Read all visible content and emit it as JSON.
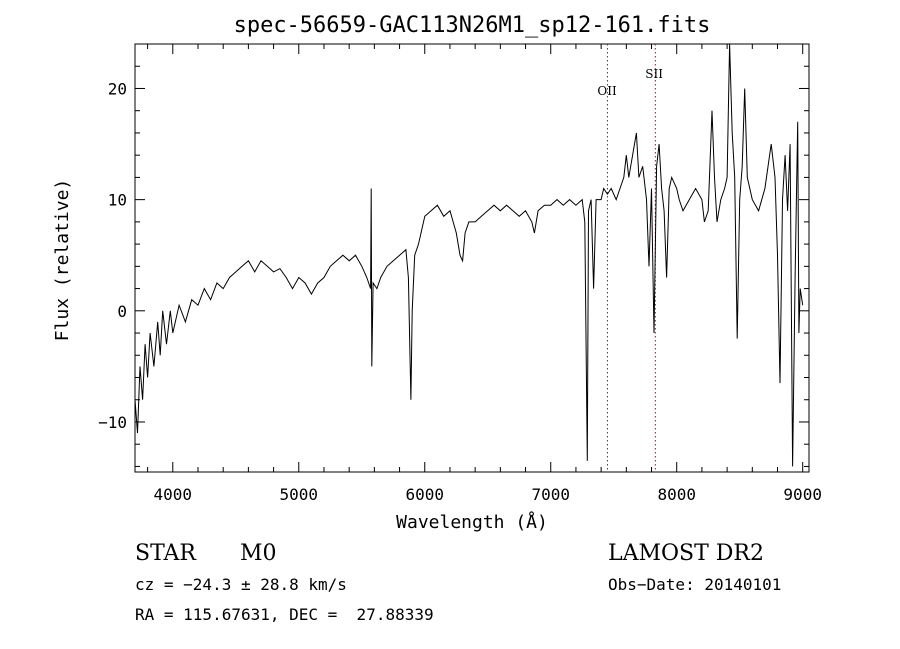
{
  "chart_data": {
    "type": "line",
    "title": "spec-56659-GAC113N26M1_sp12-161.fits",
    "xlabel": "Wavelength (Å)",
    "ylabel": "Flux (relative)",
    "xlim": [
      3700,
      9050
    ],
    "ylim": [
      -14.5,
      24
    ],
    "xticks": [
      4000,
      5000,
      6000,
      7000,
      8000,
      9000
    ],
    "yticks": [
      -10,
      0,
      10,
      20
    ],
    "x_tick_labels": [
      "4000",
      "5000",
      "6000",
      "7000",
      "8000",
      "9000"
    ],
    "y_tick_labels": [
      "−10",
      "0",
      "10",
      "20"
    ],
    "grid": false,
    "lines": [
      {
        "label": "OII",
        "x": 7450,
        "color": "#cc0000"
      },
      {
        "label": "SII",
        "x": 7830,
        "color": "#cc0000"
      }
    ],
    "series": [
      {
        "values": [
          [
            3700,
            -8
          ],
          [
            3720,
            -11
          ],
          [
            3740,
            -5
          ],
          [
            3760,
            -8
          ],
          [
            3780,
            -3
          ],
          [
            3800,
            -6
          ],
          [
            3820,
            -2
          ],
          [
            3850,
            -5
          ],
          [
            3880,
            -1
          ],
          [
            3900,
            -4
          ],
          [
            3920,
            0
          ],
          [
            3950,
            -3
          ],
          [
            3980,
            0
          ],
          [
            4000,
            -2
          ],
          [
            4050,
            0.5
          ],
          [
            4100,
            -1
          ],
          [
            4150,
            1
          ],
          [
            4200,
            0.5
          ],
          [
            4250,
            2
          ],
          [
            4300,
            1
          ],
          [
            4350,
            2.5
          ],
          [
            4400,
            2
          ],
          [
            4450,
            3
          ],
          [
            4500,
            3.5
          ],
          [
            4550,
            4
          ],
          [
            4600,
            4.5
          ],
          [
            4650,
            3.5
          ],
          [
            4700,
            4.5
          ],
          [
            4750,
            4
          ],
          [
            4800,
            3.5
          ],
          [
            4850,
            3.8
          ],
          [
            4900,
            3
          ],
          [
            4950,
            2
          ],
          [
            5000,
            3
          ],
          [
            5050,
            2.5
          ],
          [
            5100,
            1.5
          ],
          [
            5150,
            2.5
          ],
          [
            5200,
            3
          ],
          [
            5250,
            4
          ],
          [
            5300,
            4.5
          ],
          [
            5350,
            5
          ],
          [
            5400,
            4.5
          ],
          [
            5450,
            5
          ],
          [
            5500,
            4
          ],
          [
            5540,
            3
          ],
          [
            5570,
            2
          ],
          [
            5575,
            11
          ],
          [
            5580,
            -5
          ],
          [
            5590,
            2.5
          ],
          [
            5620,
            2
          ],
          [
            5650,
            3
          ],
          [
            5700,
            4
          ],
          [
            5750,
            4.5
          ],
          [
            5800,
            5
          ],
          [
            5850,
            5.5
          ],
          [
            5870,
            3
          ],
          [
            5890,
            -8
          ],
          [
            5900,
            0
          ],
          [
            5920,
            5
          ],
          [
            5950,
            6
          ],
          [
            6000,
            8.5
          ],
          [
            6050,
            9
          ],
          [
            6100,
            9.5
          ],
          [
            6150,
            8.5
          ],
          [
            6200,
            9
          ],
          [
            6250,
            7
          ],
          [
            6280,
            5
          ],
          [
            6300,
            4.5
          ],
          [
            6320,
            7
          ],
          [
            6350,
            8
          ],
          [
            6400,
            8
          ],
          [
            6450,
            8.5
          ],
          [
            6500,
            9
          ],
          [
            6550,
            9.5
          ],
          [
            6600,
            9
          ],
          [
            6650,
            9.5
          ],
          [
            6700,
            9
          ],
          [
            6750,
            8.5
          ],
          [
            6800,
            9
          ],
          [
            6850,
            8
          ],
          [
            6870,
            7
          ],
          [
            6900,
            9
          ],
          [
            6950,
            9.5
          ],
          [
            7000,
            9.5
          ],
          [
            7050,
            10
          ],
          [
            7100,
            9.5
          ],
          [
            7150,
            10
          ],
          [
            7200,
            9.5
          ],
          [
            7250,
            10
          ],
          [
            7270,
            8
          ],
          [
            7290,
            -13.5
          ],
          [
            7300,
            9
          ],
          [
            7320,
            10
          ],
          [
            7340,
            2
          ],
          [
            7360,
            10
          ],
          [
            7400,
            10
          ],
          [
            7420,
            11
          ],
          [
            7450,
            10.5
          ],
          [
            7480,
            11
          ],
          [
            7520,
            10
          ],
          [
            7550,
            11
          ],
          [
            7580,
            12
          ],
          [
            7600,
            14
          ],
          [
            7620,
            12
          ],
          [
            7650,
            14
          ],
          [
            7680,
            16
          ],
          [
            7700,
            12
          ],
          [
            7730,
            13
          ],
          [
            7760,
            10
          ],
          [
            7780,
            4
          ],
          [
            7800,
            11
          ],
          [
            7820,
            -2
          ],
          [
            7840,
            13
          ],
          [
            7860,
            15
          ],
          [
            7880,
            11
          ],
          [
            7900,
            9
          ],
          [
            7920,
            3
          ],
          [
            7940,
            11
          ],
          [
            7960,
            12
          ],
          [
            8000,
            11
          ],
          [
            8020,
            10
          ],
          [
            8050,
            9
          ],
          [
            8100,
            10
          ],
          [
            8150,
            11
          ],
          [
            8200,
            10
          ],
          [
            8220,
            8
          ],
          [
            8250,
            9
          ],
          [
            8280,
            18
          ],
          [
            8300,
            12
          ],
          [
            8320,
            8
          ],
          [
            8350,
            10
          ],
          [
            8380,
            11
          ],
          [
            8400,
            12
          ],
          [
            8420,
            24
          ],
          [
            8440,
            16
          ],
          [
            8460,
            12
          ],
          [
            8480,
            -2.5
          ],
          [
            8500,
            10
          ],
          [
            8520,
            13
          ],
          [
            8540,
            20
          ],
          [
            8560,
            12
          ],
          [
            8600,
            10
          ],
          [
            8650,
            9
          ],
          [
            8700,
            11
          ],
          [
            8750,
            15
          ],
          [
            8780,
            12
          ],
          [
            8800,
            5
          ],
          [
            8820,
            -6.5
          ],
          [
            8840,
            10
          ],
          [
            8860,
            14
          ],
          [
            8880,
            9
          ],
          [
            8900,
            15
          ],
          [
            8920,
            -14
          ],
          [
            8940,
            3
          ],
          [
            8960,
            17
          ],
          [
            8970,
            -2
          ],
          [
            8980,
            2
          ],
          [
            9000,
            0.5
          ]
        ]
      }
    ]
  },
  "info": {
    "object_class": "STAR",
    "subclass": "M0",
    "survey": "LAMOST DR2",
    "cz_line": "cz = −24.3 ± 28.8 km/s",
    "obs_date_line": "Obs−Date: 20140101",
    "coords_line": "RA = 115.67631, DEC =  27.88339"
  },
  "colors": {
    "spectrum": "#000000",
    "line_markers": "#cc0000"
  }
}
